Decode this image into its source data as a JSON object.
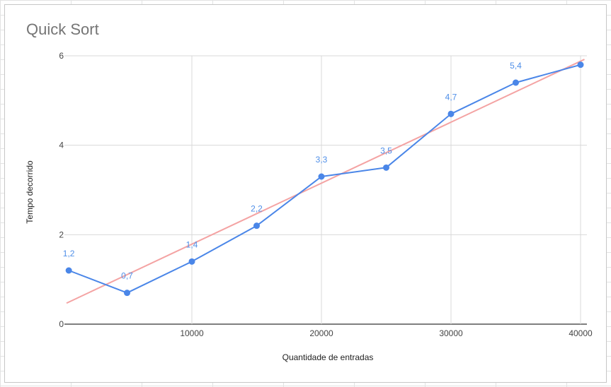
{
  "colors": {
    "series": "#4a86e8",
    "trendline": "#f4a3a3",
    "grid": "#d9d9d9",
    "data_label": "#4f8fe8"
  },
  "chart_data": {
    "type": "line",
    "title": "Quick Sort",
    "xlabel": "Quantidade de entradas",
    "ylabel": "Tempo decorrido",
    "xlim": [
      0,
      40000
    ],
    "ylim": [
      0,
      6
    ],
    "x_ticks": [
      10000,
      20000,
      30000,
      40000
    ],
    "y_ticks": [
      0,
      2,
      4,
      6
    ],
    "grid": true,
    "series": [
      {
        "x": [
          500,
          5000,
          10000,
          15000,
          20000,
          25000,
          30000,
          35000,
          40000
        ],
        "values": [
          1.2,
          0.7,
          1.4,
          2.2,
          3.3,
          3.5,
          4.7,
          5.4,
          5.8
        ],
        "labels": [
          "1,2",
          "0,7",
          "1,4",
          "2,2",
          "3,3",
          "3,5",
          "4,7",
          "5,4",
          ""
        ]
      }
    ],
    "trendline": {
      "type": "linear",
      "x": [
        0,
        40300
      ],
      "y": [
        0.47,
        5.92
      ]
    }
  }
}
